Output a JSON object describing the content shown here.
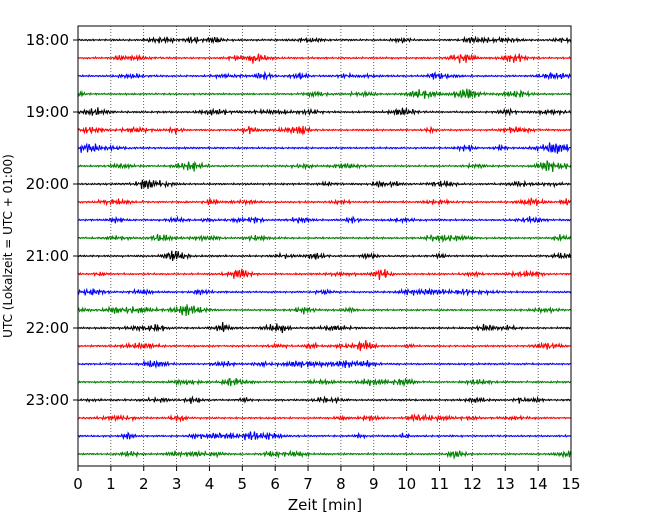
{
  "chart_data": {
    "type": "line",
    "subtype": "helicorder",
    "title": "",
    "xlabel": "Zeit  [min]",
    "ylabel": "UTC (Lokalzeit = UTC + 01:00)",
    "xlim": [
      0,
      15
    ],
    "x_ticks": [
      0,
      1,
      2,
      3,
      4,
      5,
      6,
      7,
      8,
      9,
      10,
      11,
      12,
      13,
      14,
      15
    ],
    "x_tick_labels": [
      "0",
      "1",
      "2",
      "3",
      "4",
      "5",
      "6",
      "7",
      "8",
      "9",
      "10",
      "11",
      "12",
      "13",
      "14",
      "15"
    ],
    "grid": "vertical dotted",
    "start_time": "18:00",
    "trace_interval_min": 15,
    "trace_count": 24,
    "y_tick_labels": [
      "18:00",
      "19:00",
      "20:00",
      "21:00",
      "22:00",
      "23:00"
    ],
    "trace_colors": [
      "#000000",
      "#ff0000",
      "#0000ff",
      "#008000"
    ],
    "legend": "none"
  }
}
